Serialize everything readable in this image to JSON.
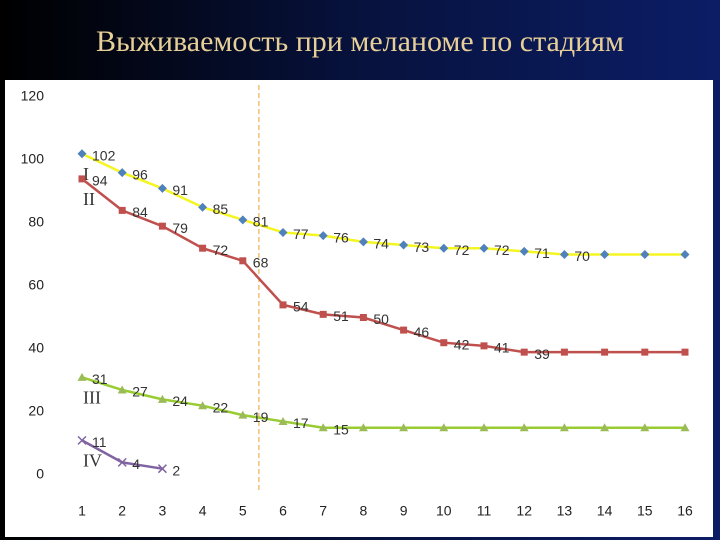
{
  "chart_data": {
    "type": "line",
    "title": "Выживаемость при меланоме по стадиям",
    "categories": [
      "1",
      "2",
      "3",
      "4",
      "5",
      "6",
      "7",
      "8",
      "9",
      "10",
      "11",
      "12",
      "13",
      "14",
      "15",
      "16"
    ],
    "ylim": [
      0,
      120
    ],
    "yticks": [
      0,
      20,
      40,
      60,
      80,
      100,
      120
    ],
    "grid": false,
    "reference_x": 5.4,
    "reference_color": "#f0b050",
    "series": [
      {
        "name": "I",
        "color": "#f5f520",
        "marker": "diamond",
        "marker_color": "#4f81bd",
        "values": [
          102,
          96,
          91,
          85,
          81,
          77,
          76,
          74,
          73,
          72,
          72,
          71,
          70,
          70,
          70,
          70
        ],
        "value_labels": [
          "102",
          "96",
          "91",
          "85",
          "81",
          "77",
          "76",
          "74",
          "73",
          "72",
          "72",
          "71",
          "70",
          null,
          null,
          null
        ]
      },
      {
        "name": "II",
        "color": "#c0504d",
        "marker": "square",
        "marker_color": "#c0504d",
        "values": [
          94,
          84,
          79,
          72,
          68,
          54,
          51,
          50,
          46,
          42,
          41,
          39,
          39,
          39,
          39,
          39
        ],
        "value_labels": [
          "94",
          "84",
          "79",
          "72",
          "68",
          "54",
          "51",
          "50",
          "46",
          "42",
          "41",
          "39",
          null,
          null,
          null,
          null
        ]
      },
      {
        "name": "III",
        "color": "#99cc33",
        "marker": "triangle",
        "marker_color": "#9bbb59",
        "values": [
          31,
          27,
          24,
          22,
          19,
          17,
          15,
          15,
          15,
          15,
          15,
          15,
          15,
          15,
          15,
          15
        ],
        "value_labels": [
          "31",
          "27",
          "24",
          "22",
          "19",
          "17",
          "15",
          null,
          null,
          null,
          null,
          null,
          null,
          null,
          null,
          null
        ]
      },
      {
        "name": "IV",
        "color": "#8064a2",
        "marker": "x",
        "marker_color": "#8064a2",
        "values": [
          11,
          4,
          2,
          null,
          null,
          null,
          null,
          null,
          null,
          null,
          null,
          null,
          null,
          null,
          null,
          null
        ],
        "value_labels": [
          "11",
          "4",
          "2",
          null,
          null,
          null,
          null,
          null,
          null,
          null,
          null,
          null,
          null,
          null,
          null,
          null
        ]
      }
    ]
  }
}
